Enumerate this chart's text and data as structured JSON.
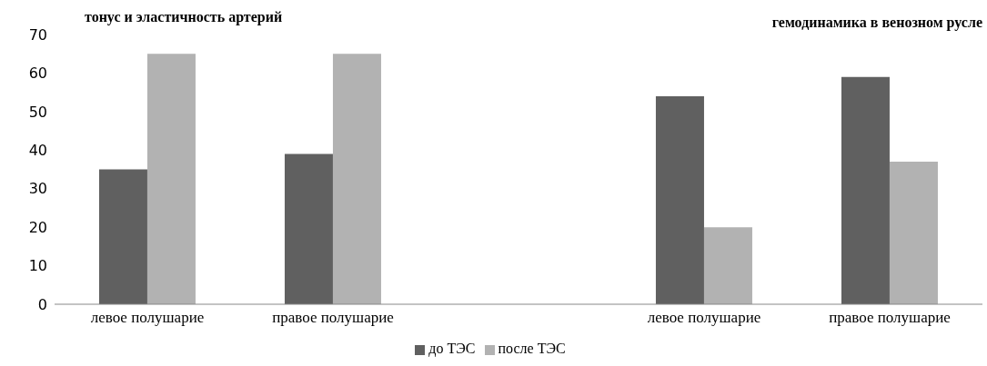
{
  "chart_data": {
    "type": "bar",
    "annotations": [
      "тонус и эластичность артерий",
      "гемодинамика в венозном русле"
    ],
    "categories": [
      "левое полушарие",
      "правое полушарие",
      null,
      "левое полушарие",
      "правое полушарие"
    ],
    "series": [
      {
        "name": "до ТЭС",
        "color": "#606060",
        "values": [
          35,
          39,
          null,
          54,
          59
        ]
      },
      {
        "name": "после ТЭС",
        "color": "#b2b2b2",
        "values": [
          65,
          65,
          null,
          20,
          37
        ]
      }
    ],
    "ylim": [
      0,
      70
    ],
    "yticks": [
      0,
      10,
      20,
      30,
      40,
      50,
      60,
      70
    ],
    "grid": false,
    "legend": "bottom"
  }
}
